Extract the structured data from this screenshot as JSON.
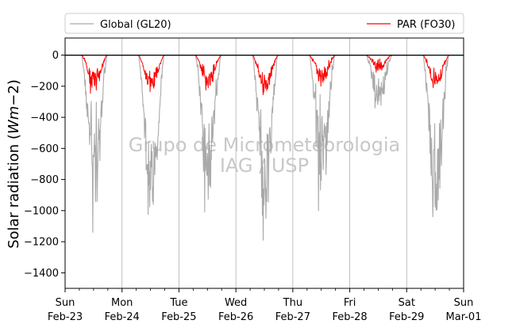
{
  "chart_data": {
    "type": "line",
    "title": "",
    "xlabel": "",
    "ylabel": "Solar radiation (W m−2)",
    "ylim": [
      -1500,
      110
    ],
    "yticks": [
      0,
      -200,
      -400,
      -600,
      -800,
      -1000,
      -1200,
      -1400
    ],
    "xlim": [
      "2020-02-23",
      "2020-03-01"
    ],
    "x_tick_labels": [
      {
        "line1": "Sun",
        "line2": "Feb-23"
      },
      {
        "line1": "Mon",
        "line2": "Feb-24"
      },
      {
        "line1": "Tue",
        "line2": "Feb-25"
      },
      {
        "line1": "Wed",
        "line2": "Feb-26"
      },
      {
        "line1": "Thu",
        "line2": "Feb-27"
      },
      {
        "line1": "Fri",
        "line2": "Feb-28"
      },
      {
        "line1": "Sat",
        "line2": "Feb-29"
      },
      {
        "line1": "Sun",
        "line2": "Mar-01"
      }
    ],
    "grid": "vertical",
    "legend_placement": "top",
    "series": [
      {
        "name": "Global (GL20)",
        "color": "#a9a9a9",
        "daily_peak_min": [
          -1140,
          -1025,
          -1010,
          -1190,
          -1000,
          -340,
          -1040
        ],
        "daily_typical_range": [
          [
            -500,
            -800
          ],
          [
            -600,
            -950
          ],
          [
            -500,
            -850
          ],
          [
            -500,
            -900
          ],
          [
            -450,
            -800
          ],
          [
            -150,
            -320
          ],
          [
            -500,
            -980
          ]
        ]
      },
      {
        "name": "PAR (FO30)",
        "color": "#ff0000",
        "daily_peak_min": [
          -245,
          -235,
          -225,
          -255,
          -200,
          -110,
          -210
        ],
        "daily_typical_range": [
          [
            -100,
            -190
          ],
          [
            -130,
            -200
          ],
          [
            -120,
            -190
          ],
          [
            -120,
            -210
          ],
          [
            -90,
            -160
          ],
          [
            -40,
            -90
          ],
          [
            -110,
            -190
          ]
        ]
      }
    ],
    "zero_line": true,
    "watermark": [
      "Grupo de Micrometeorologia",
      "IAG / USP"
    ]
  }
}
